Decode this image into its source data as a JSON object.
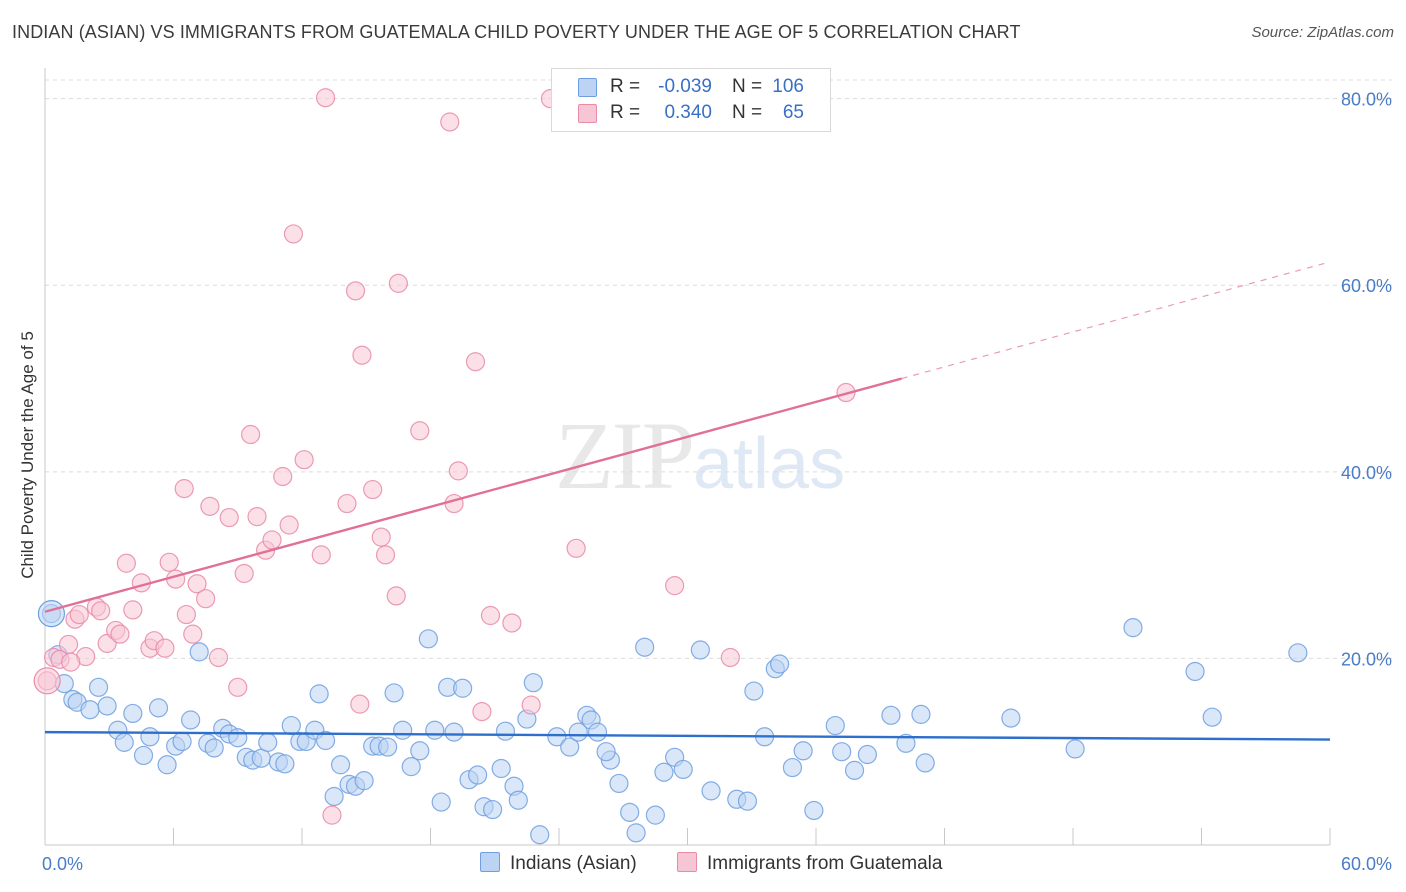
{
  "title": "INDIAN (ASIAN) VS IMMIGRANTS FROM GUATEMALA CHILD POVERTY UNDER THE AGE OF 5 CORRELATION CHART",
  "source": "Source: ZipAtlas.com",
  "watermark": {
    "zip": "ZIP",
    "atlas": "atlas"
  },
  "legend": {
    "series": [
      {
        "name": "Indians (Asian)",
        "r_label": "R =",
        "r_value": "-0.039",
        "n_label": "N =",
        "n_value": "106",
        "color": "#6f9fe0",
        "fill": "#bcd3f3"
      },
      {
        "name": "Immigrants from Guatemala",
        "r_label": "R =",
        "r_value": "0.340",
        "n_label": "N =",
        "n_value": "65",
        "color": "#e98aa8",
        "fill": "#f7c6d5"
      }
    ]
  },
  "chart_data": {
    "type": "scatter",
    "ylabel": "Child Poverty Under the Age of 5",
    "xlim": [
      0,
      60
    ],
    "ylim": [
      0,
      82
    ],
    "x_tick_labels": [
      "0.0%",
      "60.0%"
    ],
    "y_ticks": [
      20,
      40,
      60,
      80
    ],
    "y_tick_labels": [
      "20.0%",
      "40.0%",
      "60.0%",
      "80.0%"
    ],
    "grid": true,
    "series": [
      {
        "name": "Indians (Asian)",
        "color": "#6f9fe0",
        "fill": "#bcd3f3",
        "trend": {
          "x": [
            0,
            60
          ],
          "y": [
            12.1,
            11.3
          ],
          "line_color": "#2e6fcc"
        },
        "points": [
          [
            0.3,
            24.8
          ],
          [
            0.6,
            20.4
          ],
          [
            0.9,
            17.3
          ],
          [
            1.3,
            15.6
          ],
          [
            1.5,
            15.3
          ],
          [
            2.1,
            14.5
          ],
          [
            2.5,
            16.9
          ],
          [
            2.9,
            14.9
          ],
          [
            3.4,
            12.3
          ],
          [
            3.7,
            11.0
          ],
          [
            4.1,
            14.1
          ],
          [
            4.6,
            9.6
          ],
          [
            4.9,
            11.6
          ],
          [
            5.3,
            14.7
          ],
          [
            5.7,
            8.6
          ],
          [
            6.1,
            10.6
          ],
          [
            6.4,
            11.1
          ],
          [
            6.8,
            13.4
          ],
          [
            7.2,
            20.7
          ],
          [
            7.6,
            10.9
          ],
          [
            7.9,
            10.4
          ],
          [
            8.3,
            12.5
          ],
          [
            8.6,
            11.9
          ],
          [
            9.0,
            11.5
          ],
          [
            9.4,
            9.4
          ],
          [
            9.7,
            9.1
          ],
          [
            10.1,
            9.3
          ],
          [
            10.4,
            11.0
          ],
          [
            10.9,
            8.9
          ],
          [
            11.2,
            8.7
          ],
          [
            11.5,
            12.8
          ],
          [
            11.9,
            11.1
          ],
          [
            12.2,
            11.1
          ],
          [
            12.6,
            12.3
          ],
          [
            12.8,
            16.2
          ],
          [
            13.1,
            11.2
          ],
          [
            13.5,
            5.2
          ],
          [
            13.8,
            8.6
          ],
          [
            14.2,
            6.5
          ],
          [
            14.5,
            6.3
          ],
          [
            14.9,
            6.9
          ],
          [
            15.3,
            10.6
          ],
          [
            15.6,
            10.6
          ],
          [
            16.0,
            10.5
          ],
          [
            16.3,
            16.3
          ],
          [
            16.7,
            12.3
          ],
          [
            17.1,
            8.4
          ],
          [
            17.5,
            10.1
          ],
          [
            17.9,
            22.1
          ],
          [
            18.2,
            12.3
          ],
          [
            18.5,
            4.6
          ],
          [
            18.8,
            16.9
          ],
          [
            19.1,
            12.1
          ],
          [
            19.5,
            16.8
          ],
          [
            19.8,
            7.0
          ],
          [
            20.2,
            7.5
          ],
          [
            20.5,
            4.1
          ],
          [
            20.9,
            3.8
          ],
          [
            21.3,
            8.2
          ],
          [
            21.5,
            12.2
          ],
          [
            21.9,
            6.3
          ],
          [
            22.1,
            4.8
          ],
          [
            22.5,
            13.5
          ],
          [
            22.8,
            17.4
          ],
          [
            23.1,
            1.1
          ],
          [
            23.9,
            11.6
          ],
          [
            24.5,
            10.5
          ],
          [
            24.9,
            12.1
          ],
          [
            25.3,
            13.9
          ],
          [
            25.5,
            13.4
          ],
          [
            25.8,
            12.1
          ],
          [
            26.4,
            9.1
          ],
          [
            26.8,
            6.6
          ],
          [
            27.3,
            3.5
          ],
          [
            27.6,
            1.3
          ],
          [
            28.0,
            21.2
          ],
          [
            28.5,
            3.2
          ],
          [
            28.9,
            7.8
          ],
          [
            29.4,
            9.4
          ],
          [
            29.8,
            8.1
          ],
          [
            30.6,
            20.9
          ],
          [
            31.1,
            5.8
          ],
          [
            32.3,
            4.9
          ],
          [
            32.8,
            4.7
          ],
          [
            33.1,
            16.5
          ],
          [
            33.6,
            11.6
          ],
          [
            34.1,
            18.9
          ],
          [
            34.3,
            19.4
          ],
          [
            34.9,
            8.3
          ],
          [
            35.4,
            10.1
          ],
          [
            35.9,
            3.7
          ],
          [
            36.9,
            12.8
          ],
          [
            37.2,
            10.0
          ],
          [
            37.8,
            8.0
          ],
          [
            38.4,
            9.7
          ],
          [
            39.5,
            13.9
          ],
          [
            40.2,
            10.9
          ],
          [
            40.9,
            14.0
          ],
          [
            41.1,
            8.8
          ],
          [
            45.1,
            13.6
          ],
          [
            48.1,
            10.3
          ],
          [
            50.8,
            23.3
          ],
          [
            53.7,
            18.6
          ],
          [
            54.5,
            13.7
          ],
          [
            58.5,
            20.6
          ],
          [
            26.2,
            10.0
          ]
        ]
      },
      {
        "name": "Immigrants from Guatemala",
        "color": "#e98aa8",
        "fill": "#f7c6d5",
        "trend": {
          "x": [
            0,
            40
          ],
          "y": [
            25.0,
            50.0
          ],
          "line_color": "#e07098",
          "dashed_extension": {
            "x": [
              40,
              60
            ],
            "y": [
              50.0,
              62.5
            ]
          }
        },
        "points": [
          [
            0.1,
            17.6
          ],
          [
            0.4,
            20.1
          ],
          [
            0.7,
            19.9
          ],
          [
            1.1,
            21.5
          ],
          [
            1.4,
            24.2
          ],
          [
            1.6,
            24.7
          ],
          [
            1.9,
            20.2
          ],
          [
            2.4,
            25.5
          ],
          [
            2.6,
            25.1
          ],
          [
            2.9,
            21.6
          ],
          [
            3.3,
            23.0
          ],
          [
            3.5,
            22.6
          ],
          [
            3.8,
            30.2
          ],
          [
            4.1,
            25.2
          ],
          [
            4.5,
            28.1
          ],
          [
            4.9,
            21.1
          ],
          [
            5.1,
            21.9
          ],
          [
            5.6,
            21.1
          ],
          [
            5.8,
            30.3
          ],
          [
            6.1,
            28.5
          ],
          [
            6.5,
            38.2
          ],
          [
            6.9,
            22.6
          ],
          [
            7.1,
            28.0
          ],
          [
            7.5,
            26.4
          ],
          [
            7.7,
            36.3
          ],
          [
            8.1,
            20.1
          ],
          [
            8.6,
            35.1
          ],
          [
            9.0,
            16.9
          ],
          [
            9.3,
            29.1
          ],
          [
            9.6,
            44.0
          ],
          [
            9.9,
            35.2
          ],
          [
            10.3,
            31.6
          ],
          [
            10.6,
            32.7
          ],
          [
            11.1,
            39.5
          ],
          [
            11.4,
            34.3
          ],
          [
            11.6,
            65.5
          ],
          [
            12.1,
            41.3
          ],
          [
            12.9,
            31.1
          ],
          [
            13.1,
            80.1
          ],
          [
            13.4,
            3.2
          ],
          [
            14.1,
            36.6
          ],
          [
            14.5,
            59.4
          ],
          [
            14.7,
            15.1
          ],
          [
            14.8,
            52.5
          ],
          [
            15.3,
            38.1
          ],
          [
            15.7,
            33.0
          ],
          [
            15.9,
            31.1
          ],
          [
            16.4,
            26.7
          ],
          [
            16.5,
            60.2
          ],
          [
            17.5,
            44.4
          ],
          [
            18.9,
            77.5
          ],
          [
            19.1,
            36.6
          ],
          [
            19.3,
            40.1
          ],
          [
            20.1,
            51.8
          ],
          [
            20.4,
            14.3
          ],
          [
            20.8,
            24.6
          ],
          [
            21.8,
            23.8
          ],
          [
            22.7,
            15.0
          ],
          [
            23.6,
            80.0
          ],
          [
            24.8,
            31.8
          ],
          [
            29.4,
            27.8
          ],
          [
            32.0,
            20.1
          ],
          [
            37.4,
            48.5
          ],
          [
            1.2,
            19.6
          ],
          [
            6.6,
            24.7
          ]
        ]
      }
    ]
  }
}
